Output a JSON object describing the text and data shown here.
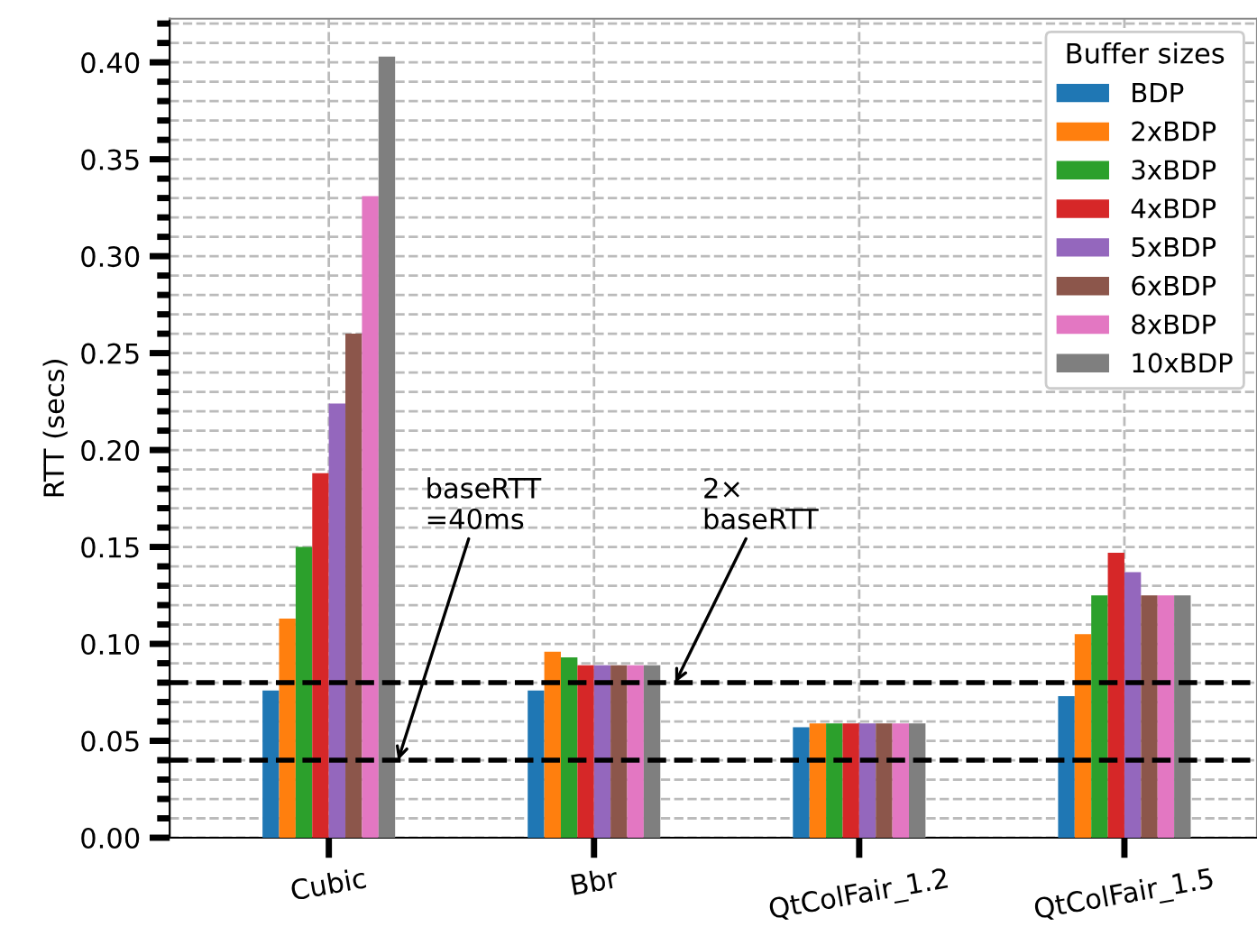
{
  "chart_data": {
    "type": "bar",
    "ylabel": "RTT (secs)",
    "legend_title": "Buffer sizes",
    "legend": "top right",
    "grid": true,
    "categories": [
      "Cubic",
      "Bbr",
      "QtColFair_1.2",
      "QtColFair_1.5"
    ],
    "series": [
      {
        "name": "BDP",
        "color": "#1f77b4",
        "values": [
          0.076,
          0.076,
          0.057,
          0.073
        ]
      },
      {
        "name": "2xBDP",
        "color": "#ff7f0e",
        "values": [
          0.113,
          0.096,
          0.059,
          0.105
        ]
      },
      {
        "name": "3xBDP",
        "color": "#2ca02c",
        "values": [
          0.15,
          0.093,
          0.059,
          0.125
        ]
      },
      {
        "name": "4xBDP",
        "color": "#d62728",
        "values": [
          0.188,
          0.089,
          0.059,
          0.147
        ]
      },
      {
        "name": "5xBDP",
        "color": "#9467bd",
        "values": [
          0.224,
          0.089,
          0.059,
          0.137
        ]
      },
      {
        "name": "6xBDP",
        "color": "#8c564b",
        "values": [
          0.26,
          0.089,
          0.059,
          0.125
        ]
      },
      {
        "name": "8xBDP",
        "color": "#e377c2",
        "values": [
          0.331,
          0.089,
          0.059,
          0.125
        ]
      },
      {
        "name": "10xBDP",
        "color": "#7f7f7f",
        "values": [
          0.403,
          0.089,
          0.059,
          0.125
        ]
      }
    ],
    "ylim": [
      0,
      0.4225
    ],
    "yticks": [
      {
        "value": 0.0,
        "label": "0.00"
      },
      {
        "value": 0.05,
        "label": "0.05"
      },
      {
        "value": 0.1,
        "label": "0.10"
      },
      {
        "value": 0.15,
        "label": "0.15"
      },
      {
        "value": 0.2,
        "label": "0.20"
      },
      {
        "value": 0.25,
        "label": "0.25"
      },
      {
        "value": 0.3,
        "label": "0.30"
      },
      {
        "value": 0.35,
        "label": "0.35"
      },
      {
        "value": 0.4,
        "label": "0.40"
      }
    ],
    "ref_lines": [
      {
        "axis": "y",
        "value": 0.04,
        "label": "baseRTT\n=40ms",
        "color": "#000000",
        "line_style": "dashed"
      },
      {
        "axis": "y",
        "value": 0.08,
        "label": "2×\nbaseRTT",
        "color": "#000000",
        "line_style": "dashed"
      }
    ]
  }
}
